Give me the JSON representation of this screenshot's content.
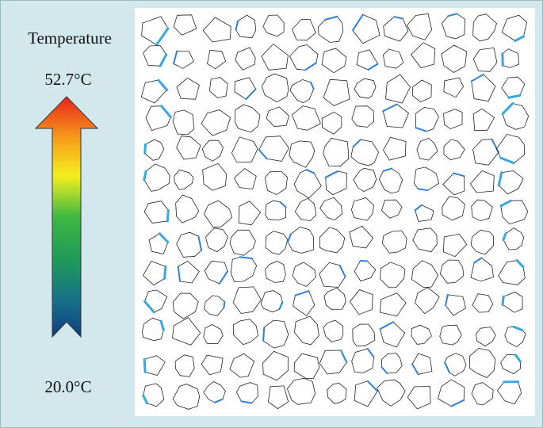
{
  "legend": {
    "title": "Temperature",
    "max_label": "52.7°C",
    "min_label": "20.0°C"
  }
}
